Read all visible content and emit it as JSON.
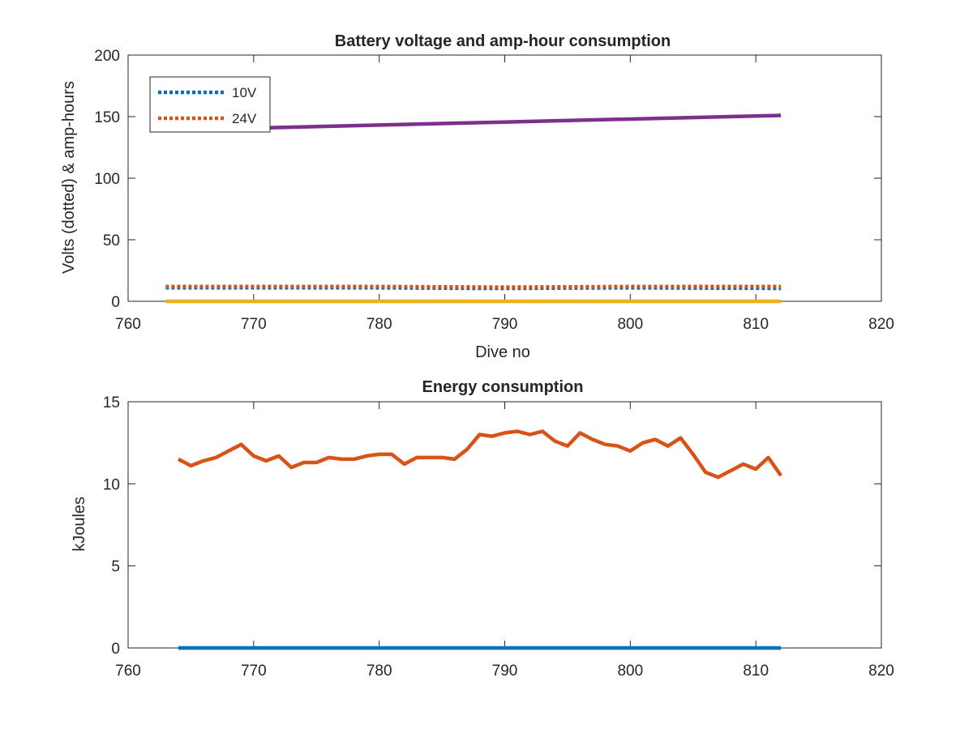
{
  "chart_data": [
    {
      "type": "line",
      "title": "Battery voltage and amp-hour consumption",
      "xlabel": "Dive no",
      "ylabel": "Volts (dotted) & amp-hours",
      "xlim": [
        760,
        820
      ],
      "ylim": [
        0,
        200
      ],
      "xticks": [
        "760",
        "770",
        "780",
        "790",
        "800",
        "810",
        "820"
      ],
      "yticks": [
        "0",
        "50",
        "100",
        "150",
        "200"
      ],
      "grid": false,
      "legend": {
        "placement": "top-left",
        "entries": [
          "10V",
          "24V"
        ]
      },
      "series": [
        {
          "name": "10V",
          "style": "dotted",
          "color": "#0072BD",
          "x": [
            763,
            770,
            780,
            788,
            790,
            800,
            812
          ],
          "y": [
            11,
            11,
            11,
            10.5,
            10.5,
            11,
            10.5
          ]
        },
        {
          "name": "24V",
          "style": "dotted",
          "color": "#D95319",
          "x": [
            763,
            770,
            780,
            790,
            800,
            812
          ],
          "y": [
            12,
            12,
            12,
            11.5,
            12,
            12
          ]
        },
        {
          "style": "solid",
          "color": "#7E2F8E",
          "x": [
            763,
            812
          ],
          "y": [
            139,
            151
          ]
        },
        {
          "style": "solid",
          "color": "#EDB120",
          "x": [
            763,
            812
          ],
          "y": [
            0,
            0
          ]
        }
      ]
    },
    {
      "type": "line",
      "title": "Energy consumption",
      "xlabel": "",
      "ylabel": "kJoules",
      "xlim": [
        760,
        820
      ],
      "ylim": [
        0,
        15
      ],
      "xticks": [
        "760",
        "770",
        "780",
        "790",
        "800",
        "810",
        "820"
      ],
      "yticks": [
        "0",
        "5",
        "10",
        "15"
      ],
      "grid": false,
      "series": [
        {
          "style": "solid",
          "color": "#D95319",
          "x": [
            764,
            765,
            766,
            767,
            768,
            769,
            770,
            771,
            772,
            773,
            774,
            775,
            776,
            777,
            778,
            779,
            780,
            781,
            782,
            783,
            784,
            785,
            786,
            787,
            788,
            789,
            790,
            791,
            792,
            793,
            794,
            795,
            796,
            797,
            798,
            799,
            800,
            801,
            802,
            803,
            804,
            805,
            806,
            807,
            808,
            809,
            810,
            811,
            812
          ],
          "y": [
            11.5,
            11.1,
            11.4,
            11.6,
            12.0,
            12.4,
            11.7,
            11.4,
            11.7,
            11.0,
            11.3,
            11.3,
            11.6,
            11.5,
            11.5,
            11.7,
            11.8,
            11.8,
            11.2,
            11.6,
            11.6,
            11.6,
            11.5,
            12.1,
            13.0,
            12.9,
            13.1,
            13.2,
            13.0,
            13.2,
            12.6,
            12.3,
            13.1,
            12.7,
            12.4,
            12.3,
            12.0,
            12.5,
            12.7,
            12.3,
            12.8,
            11.8,
            10.7,
            10.4,
            10.8,
            11.2,
            10.9,
            11.6,
            10.5
          ]
        },
        {
          "style": "solid",
          "color": "#0072BD",
          "x": [
            764,
            812
          ],
          "y": [
            0,
            0
          ]
        }
      ]
    }
  ]
}
